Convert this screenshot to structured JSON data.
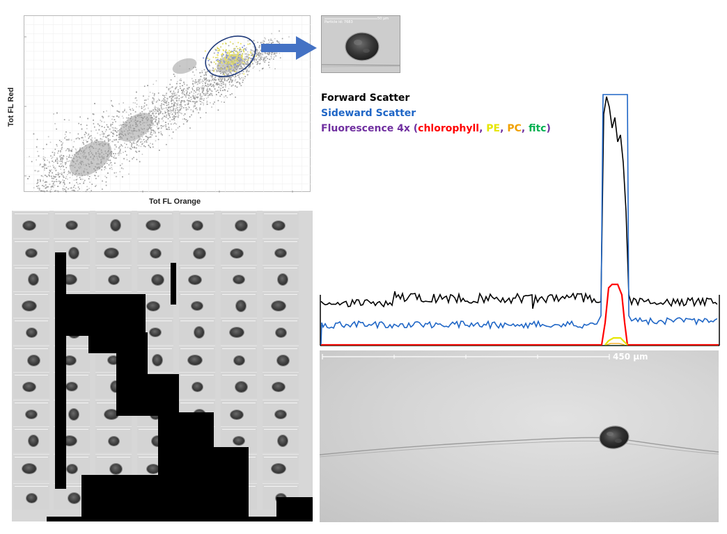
{
  "scatter_plot": {
    "y_axis_title": "Tot FL Red",
    "x_axis_title": "Tot FL Orange"
  },
  "particle_image": {
    "header_text": "Particle id: 7683",
    "scale_text": "50 µm"
  },
  "legend": {
    "forward_scatter": "Forward Scatter",
    "sideward_scatter": "Sideward Scatter",
    "fluorescence_prefix": "Fluorescence 4x (",
    "chlorophyll": "chlorophyll",
    "pe": "PE",
    "pc": "PC",
    "fitc": "fitc",
    "separator": ", ",
    "suffix": ")"
  },
  "micrograph": {
    "scale_label": "450 µm"
  },
  "colors": {
    "forward_scatter": "#000000",
    "sideward_scatter": "#1f66c6",
    "fluorescence": "#7030a0",
    "chlorophyll": "#ff0000",
    "pe": "#e6e600",
    "pc": "#f0a000",
    "fitc": "#00b050",
    "arrow": "#4472c4",
    "gate_ellipse": "#1f3a7a"
  }
}
